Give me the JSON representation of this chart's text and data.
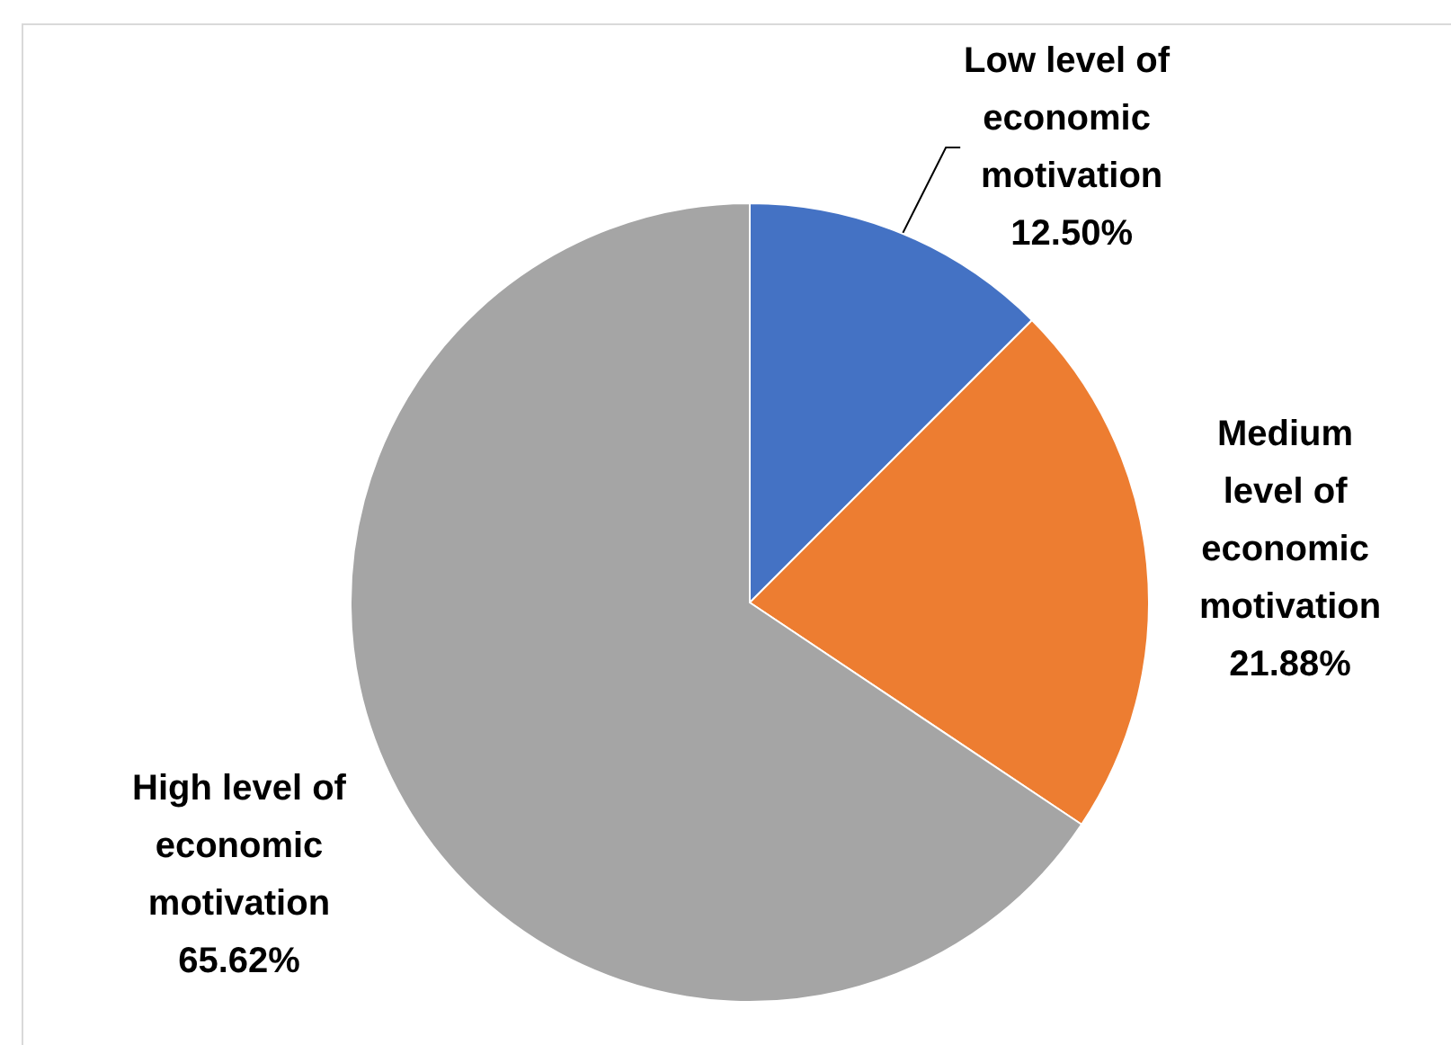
{
  "chart_data": {
    "type": "pie",
    "categories": [
      "Low level of economic motivation",
      "Medium level of economic motivation",
      "High level of economic motivation"
    ],
    "values": [
      12.5,
      21.88,
      65.62
    ],
    "colors": [
      "#4472c4",
      "#ed7d31",
      "#a5a5a5"
    ],
    "value_labels": [
      "12.50%",
      "21.88%",
      "65.62%"
    ]
  }
}
